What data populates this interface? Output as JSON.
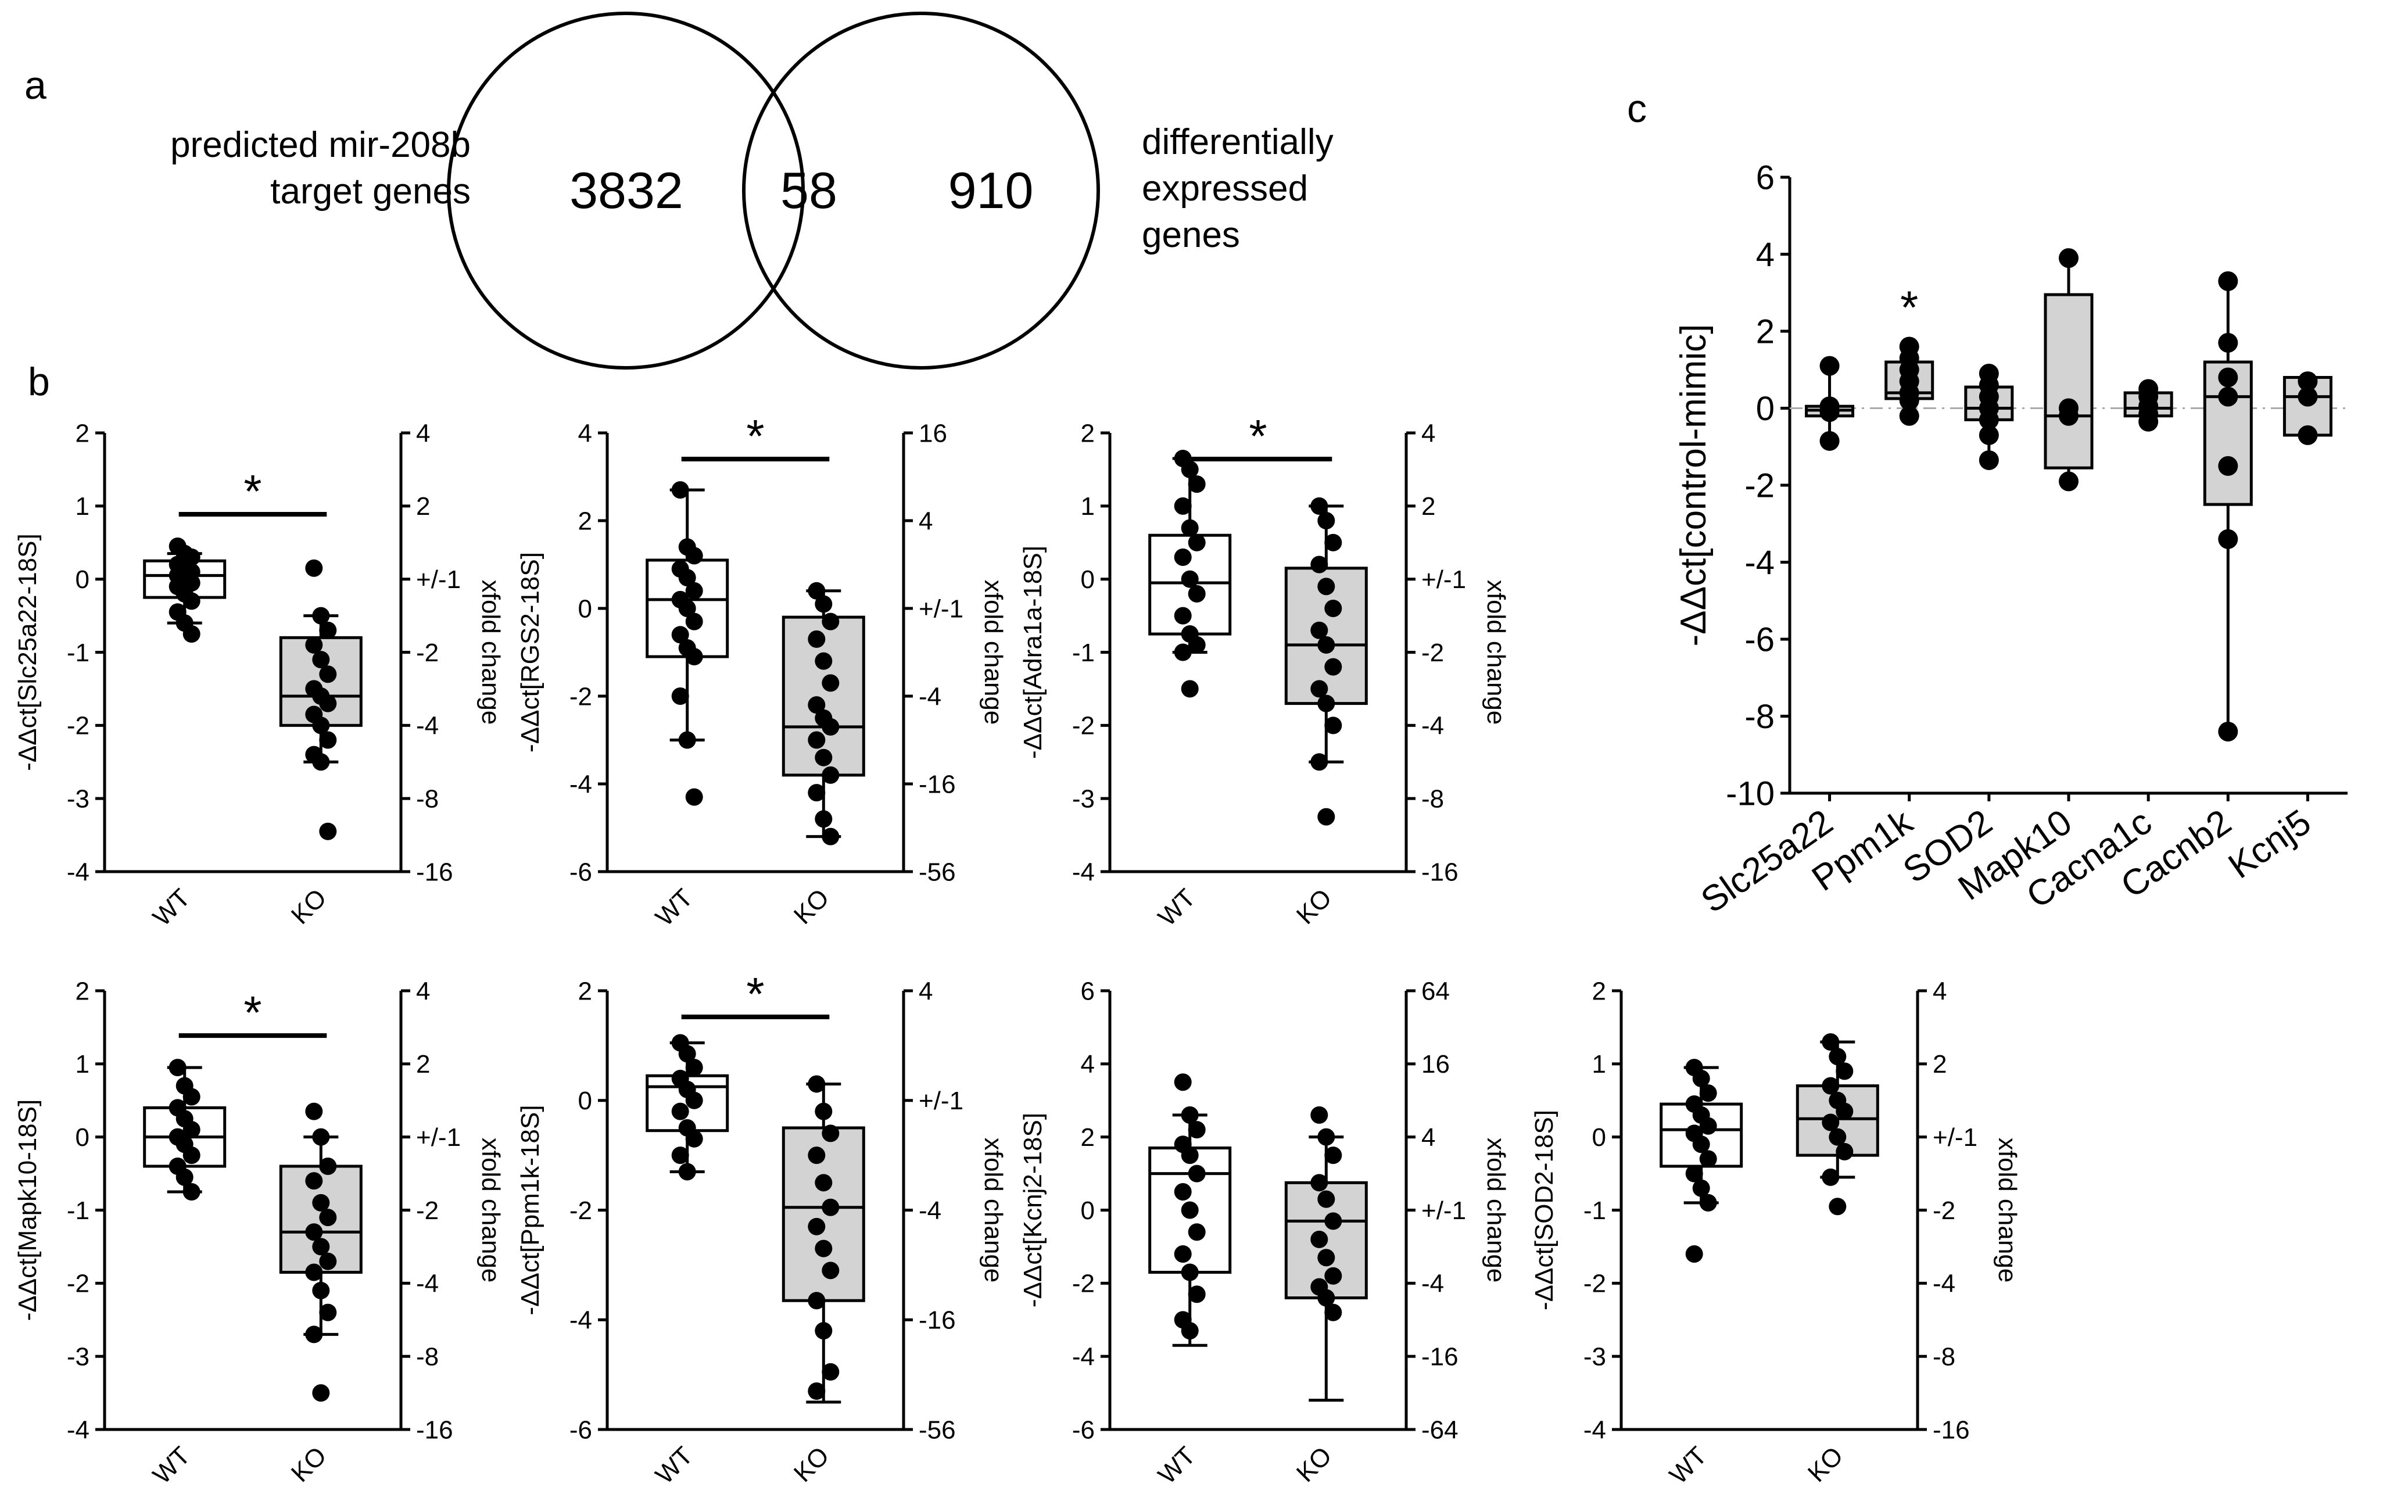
{
  "panel_labels": {
    "a": "a",
    "b": "b",
    "c": "c"
  },
  "venn": {
    "left_label_lines": [
      "predicted mir-208b",
      "target genes"
    ],
    "right_label_lines": [
      "differentially",
      "expressed",
      "genes"
    ],
    "left_only": "3832",
    "overlap": "58",
    "right_only": "910"
  },
  "chart_data": [
    {
      "type": "box",
      "id": "slc25a22",
      "ylabel": "-ΔΔct[Slc25a22-18S]",
      "y2label": "xfold change",
      "ylim": [
        -4,
        2
      ],
      "yticks": [
        2,
        1,
        0,
        -1,
        -2,
        -3,
        -4
      ],
      "y2ticks": [
        "4",
        "2",
        "+/-1",
        "-2",
        "-4",
        "-8",
        "-16"
      ],
      "categories": [
        "WT",
        "KO"
      ],
      "significance": "*",
      "groups": [
        {
          "name": "WT",
          "fill": "#ffffff",
          "q1": -0.25,
          "median": 0.05,
          "q3": 0.25,
          "wlow": -0.6,
          "whigh": 0.35,
          "points": [
            0.45,
            0.35,
            0.3,
            0.2,
            0.15,
            0.1,
            0.05,
            0.0,
            -0.05,
            -0.1,
            -0.2,
            -0.3,
            -0.45,
            -0.6,
            -0.75
          ]
        },
        {
          "name": "KO",
          "fill": "#d3d3d3",
          "q1": -2.0,
          "median": -1.6,
          "q3": -0.8,
          "wlow": -2.5,
          "whigh": -0.5,
          "points": [
            0.15,
            -0.5,
            -0.7,
            -0.9,
            -1.1,
            -1.3,
            -1.5,
            -1.6,
            -1.7,
            -1.85,
            -2.0,
            -2.2,
            -2.4,
            -2.5,
            -3.45
          ]
        }
      ]
    },
    {
      "type": "box",
      "id": "rgs2",
      "ylabel": "-ΔΔct[RGS2-18S]",
      "y2label": "xfold change",
      "ylim": [
        -6,
        4
      ],
      "yticks": [
        4,
        2,
        0,
        -2,
        -4,
        -6
      ],
      "y2ticks": [
        "16",
        "4",
        "+/-1",
        "-4",
        "-16",
        "-56"
      ],
      "categories": [
        "WT",
        "KO"
      ],
      "significance": "*",
      "groups": [
        {
          "name": "WT",
          "fill": "#ffffff",
          "q1": -1.1,
          "median": 0.2,
          "q3": 1.1,
          "wlow": -3.0,
          "whigh": 2.7,
          "points": [
            2.7,
            1.4,
            1.2,
            0.9,
            0.7,
            0.4,
            0.2,
            0.0,
            -0.3,
            -0.6,
            -0.9,
            -1.1,
            -2.0,
            -3.0,
            -4.3
          ]
        },
        {
          "name": "KO",
          "fill": "#d3d3d3",
          "q1": -3.8,
          "median": -2.7,
          "q3": -0.2,
          "wlow": -5.2,
          "whigh": 0.4,
          "points": [
            0.4,
            0.1,
            -0.3,
            -0.7,
            -1.2,
            -1.7,
            -2.2,
            -2.5,
            -2.7,
            -3.0,
            -3.4,
            -3.8,
            -4.2,
            -4.8,
            -5.2
          ]
        }
      ]
    },
    {
      "type": "box",
      "id": "adra1a",
      "ylabel": "-ΔΔct[Adra1a-18S]",
      "y2label": "xfold change",
      "ylim": [
        -4,
        2
      ],
      "yticks": [
        2,
        1,
        0,
        -1,
        -2,
        -3,
        -4
      ],
      "y2ticks": [
        "4",
        "2",
        "+/-1",
        "-2",
        "-4",
        "-8",
        "-16"
      ],
      "categories": [
        "WT",
        "KO"
      ],
      "significance": "*",
      "groups": [
        {
          "name": "WT",
          "fill": "#ffffff",
          "q1": -0.75,
          "median": -0.05,
          "q3": 0.6,
          "wlow": -1.0,
          "whigh": 1.65,
          "points": [
            1.65,
            1.5,
            1.3,
            1.0,
            0.7,
            0.5,
            0.3,
            0.0,
            -0.2,
            -0.5,
            -0.75,
            -0.9,
            -1.0,
            -1.5
          ]
        },
        {
          "name": "KO",
          "fill": "#d3d3d3",
          "q1": -1.7,
          "median": -0.9,
          "q3": 0.15,
          "wlow": -2.5,
          "whigh": 1.0,
          "points": [
            1.0,
            0.8,
            0.5,
            0.2,
            -0.1,
            -0.4,
            -0.7,
            -0.9,
            -1.2,
            -1.5,
            -1.7,
            -2.0,
            -2.5,
            -3.25
          ]
        }
      ]
    },
    {
      "type": "box",
      "id": "mapk10",
      "ylabel": "-ΔΔct[Mapk10-18S]",
      "y2label": "xfold change",
      "ylim": [
        -4,
        2
      ],
      "yticks": [
        2,
        1,
        0,
        -1,
        -2,
        -3,
        -4
      ],
      "y2ticks": [
        "4",
        "2",
        "+/-1",
        "-2",
        "-4",
        "-8",
        "-16"
      ],
      "categories": [
        "WT",
        "KO"
      ],
      "significance": "*",
      "groups": [
        {
          "name": "WT",
          "fill": "#ffffff",
          "q1": -0.4,
          "median": 0.0,
          "q3": 0.4,
          "wlow": -0.75,
          "whigh": 0.95,
          "points": [
            0.95,
            0.7,
            0.55,
            0.4,
            0.25,
            0.1,
            0.0,
            -0.1,
            -0.25,
            -0.4,
            -0.55,
            -0.75
          ]
        },
        {
          "name": "KO",
          "fill": "#d3d3d3",
          "q1": -1.85,
          "median": -1.3,
          "q3": -0.4,
          "wlow": -2.7,
          "whigh": 0.0,
          "points": [
            0.35,
            0.0,
            -0.4,
            -0.6,
            -0.9,
            -1.1,
            -1.3,
            -1.5,
            -1.7,
            -1.85,
            -2.1,
            -2.4,
            -2.7,
            -3.5
          ]
        }
      ]
    },
    {
      "type": "box",
      "id": "ppm1k",
      "ylabel": "-ΔΔct[Ppm1k-18S]",
      "y2label": "xfold change",
      "ylim": [
        -6,
        2
      ],
      "yticks": [
        2,
        0,
        -2,
        -4,
        -6
      ],
      "y2ticks": [
        "4",
        "+/-1",
        "-4",
        "-16",
        "-56"
      ],
      "categories": [
        "WT",
        "KO"
      ],
      "significance": "*",
      "groups": [
        {
          "name": "WT",
          "fill": "#ffffff",
          "q1": -0.55,
          "median": 0.25,
          "q3": 0.45,
          "wlow": -1.3,
          "whigh": 1.05,
          "points": [
            1.05,
            0.85,
            0.6,
            0.4,
            0.2,
            0.0,
            -0.2,
            -0.5,
            -0.7,
            -1.0,
            -1.3
          ]
        },
        {
          "name": "KO",
          "fill": "#d3d3d3",
          "q1": -3.65,
          "median": -1.95,
          "q3": -0.5,
          "wlow": -5.5,
          "whigh": 0.3,
          "points": [
            0.3,
            -0.2,
            -0.6,
            -1.0,
            -1.5,
            -1.95,
            -2.3,
            -2.7,
            -3.1,
            -3.65,
            -4.2,
            -4.95,
            -5.3
          ]
        }
      ]
    },
    {
      "type": "box",
      "id": "kcnj2",
      "ylabel": "-ΔΔct[Kcnj2-18S]",
      "y2label": "xfold change",
      "ylim": [
        -6,
        6
      ],
      "yticks": [
        6,
        4,
        2,
        0,
        -2,
        -4,
        -6
      ],
      "y2ticks": [
        "64",
        "16",
        "4",
        "+/-1",
        "-4",
        "-16",
        "-64"
      ],
      "categories": [
        "WT",
        "KO"
      ],
      "significance": "",
      "groups": [
        {
          "name": "WT",
          "fill": "#ffffff",
          "q1": -1.7,
          "median": 1.0,
          "q3": 1.7,
          "wlow": -3.7,
          "whigh": 2.6,
          "points": [
            3.5,
            2.6,
            2.2,
            1.8,
            1.5,
            1.0,
            0.5,
            0.0,
            -0.6,
            -1.2,
            -1.7,
            -2.3,
            -3.0,
            -3.3
          ]
        },
        {
          "name": "KO",
          "fill": "#d3d3d3",
          "q1": -2.4,
          "median": -0.3,
          "q3": 0.75,
          "wlow": -5.2,
          "whigh": 2.0,
          "points": [
            2.6,
            2.0,
            1.5,
            0.75,
            0.3,
            -0.3,
            -0.8,
            -1.3,
            -1.8,
            -2.1,
            -2.4,
            -2.8
          ]
        }
      ]
    },
    {
      "type": "box",
      "id": "sod2",
      "ylabel": "-ΔΔct[SOD2-18S]",
      "y2label": "xfold change",
      "ylim": [
        -4,
        2
      ],
      "yticks": [
        2,
        1,
        0,
        -1,
        -2,
        -3,
        -4
      ],
      "y2ticks": [
        "4",
        "2",
        "+/-1",
        "-2",
        "-4",
        "-8",
        "-16"
      ],
      "categories": [
        "WT",
        "KO"
      ],
      "significance": "",
      "groups": [
        {
          "name": "WT",
          "fill": "#ffffff",
          "q1": -0.4,
          "median": 0.1,
          "q3": 0.45,
          "wlow": -0.9,
          "whigh": 0.95,
          "points": [
            0.95,
            0.8,
            0.6,
            0.45,
            0.3,
            0.15,
            0.05,
            -0.1,
            -0.3,
            -0.5,
            -0.7,
            -0.9,
            -1.6
          ]
        },
        {
          "name": "KO",
          "fill": "#d3d3d3",
          "q1": -0.25,
          "median": 0.25,
          "q3": 0.7,
          "wlow": -0.55,
          "whigh": 1.3,
          "points": [
            1.3,
            1.1,
            0.9,
            0.7,
            0.5,
            0.35,
            0.2,
            0.0,
            -0.2,
            -0.55,
            -0.95
          ]
        }
      ]
    },
    {
      "type": "box",
      "id": "panel_c",
      "ylabel": "-ΔΔct[control-mimic]",
      "ylim": [
        -10,
        6
      ],
      "yticks": [
        6,
        4,
        2,
        0,
        -2,
        -4,
        -6,
        -8,
        -10
      ],
      "reference_line": 0,
      "categories": [
        "Slc25a22",
        "Ppm1k",
        "SOD2",
        "Mapk10",
        "Cacna1c",
        "Cacnb2",
        "Kcnj5"
      ],
      "groups": [
        {
          "name": "Slc25a22",
          "fill": "#d3d3d3",
          "q1": -0.2,
          "median": -0.05,
          "q3": 0.05,
          "wlow": -0.85,
          "whigh": 1.1,
          "significance": "",
          "points": [
            1.1,
            0.05,
            -0.1,
            -0.85
          ]
        },
        {
          "name": "Ppm1k",
          "fill": "#d3d3d3",
          "q1": 0.25,
          "median": 0.4,
          "q3": 1.2,
          "wlow": -0.2,
          "whigh": 1.6,
          "significance": "*",
          "points": [
            1.6,
            1.3,
            1.0,
            0.7,
            0.4,
            0.2,
            -0.2
          ]
        },
        {
          "name": "SOD2",
          "fill": "#d3d3d3",
          "q1": -0.3,
          "median": 0.0,
          "q3": 0.55,
          "wlow": -1.3,
          "whigh": 0.9,
          "significance": "",
          "points": [
            0.9,
            0.6,
            0.3,
            0.0,
            -0.3,
            -0.7,
            -1.35
          ]
        },
        {
          "name": "Mapk10",
          "fill": "#d3d3d3",
          "q1": -1.55,
          "median": -0.2,
          "q3": 2.95,
          "wlow": -1.9,
          "whigh": 3.9,
          "significance": "",
          "points": [
            3.9,
            0.0,
            -0.2,
            -1.9
          ]
        },
        {
          "name": "Cacna1c",
          "fill": "#d3d3d3",
          "q1": -0.2,
          "median": 0.0,
          "q3": 0.4,
          "wlow": -0.35,
          "whigh": 0.5,
          "significance": "",
          "points": [
            0.5,
            0.3,
            0.05,
            -0.15,
            -0.35
          ]
        },
        {
          "name": "Cacnb2",
          "fill": "#d3d3d3",
          "q1": -2.5,
          "median": 0.3,
          "q3": 1.2,
          "wlow": -8.4,
          "whigh": 3.3,
          "significance": "",
          "points": [
            3.3,
            1.7,
            0.8,
            0.3,
            -1.5,
            -3.4,
            -8.4
          ]
        },
        {
          "name": "Kcnj5",
          "fill": "#d3d3d3",
          "q1": -0.7,
          "median": 0.3,
          "q3": 0.8,
          "wlow": -0.7,
          "whigh": 0.8,
          "significance": "",
          "points": [
            0.7,
            0.3,
            -0.7
          ]
        }
      ]
    }
  ]
}
